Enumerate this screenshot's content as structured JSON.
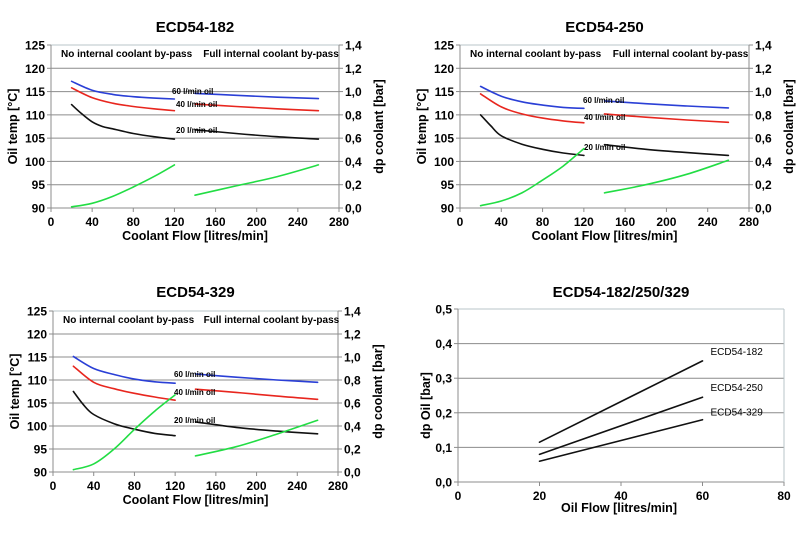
{
  "chart_data": [
    {
      "id": "c1",
      "type": "line",
      "title": "ECD54-182",
      "xlabel": "Coolant Flow  [litres/min]",
      "ylabel": "Oil temp [°C]",
      "y2label": "dp coolant [bar]",
      "xlim": [
        0,
        280
      ],
      "ylim": [
        90,
        125
      ],
      "y2lim": [
        0.0,
        1.4
      ],
      "xticks": [
        "0",
        "40",
        "80",
        "120",
        "160",
        "200",
        "240",
        "280"
      ],
      "yticks": [
        "90",
        "95",
        "100",
        "105",
        "110",
        "115",
        "120",
        "125"
      ],
      "y2ticks": [
        "0,0",
        "0,2",
        "0,4",
        "0,6",
        "0,8",
        "1,0",
        "1,2",
        "1,4"
      ],
      "grid": true,
      "annotations": [
        "No internal coolant by-pass",
        "Full internal coolant by-pass"
      ],
      "series": [
        {
          "name": "60 l/min oil",
          "axis": "left",
          "color": "#2a3fd6",
          "segments": [
            {
              "x": [
                20,
                40,
                60,
                80,
                100,
                120
              ],
              "y": [
                117.2,
                115.3,
                114.4,
                113.9,
                113.6,
                113.4
              ]
            },
            {
              "x": [
                140,
                180,
                220,
                260
              ],
              "y": [
                114.6,
                114.2,
                113.8,
                113.5
              ]
            }
          ]
        },
        {
          "name": "40 l/min oil",
          "axis": "left",
          "color": "#e8261e",
          "segments": [
            {
              "x": [
                20,
                40,
                60,
                80,
                100,
                120
              ],
              "y": [
                115.8,
                113.7,
                112.5,
                111.8,
                111.3,
                110.9
              ]
            },
            {
              "x": [
                140,
                180,
                220,
                260
              ],
              "y": [
                112.3,
                111.8,
                111.3,
                110.9
              ]
            }
          ]
        },
        {
          "name": "20 l/min oil",
          "axis": "left",
          "color": "#111111",
          "segments": [
            {
              "x": [
                20,
                30,
                40,
                50,
                60,
                80,
                100,
                120
              ],
              "y": [
                112.2,
                110.2,
                108.5,
                107.5,
                107.0,
                106.0,
                105.3,
                104.8
              ]
            },
            {
              "x": [
                140,
                180,
                220,
                260
              ],
              "y": [
                106.8,
                106.0,
                105.3,
                104.8
              ]
            }
          ]
        },
        {
          "name": "dp coolant",
          "axis": "right",
          "color": "#22dd44",
          "segments": [
            {
              "x": [
                20,
                40,
                60,
                80,
                100,
                120
              ],
              "y": [
                0.01,
                0.04,
                0.1,
                0.18,
                0.27,
                0.37
              ]
            },
            {
              "x": [
                140,
                180,
                220,
                260
              ],
              "y": [
                0.11,
                0.19,
                0.27,
                0.37
              ]
            }
          ]
        }
      ]
    },
    {
      "id": "c2",
      "type": "line",
      "title": "ECD54-250",
      "xlabel": "Coolant Flow  [litres/min]",
      "ylabel": "Oil temp [°C]",
      "y2label": "dp coolant [bar]",
      "xlim": [
        0,
        280
      ],
      "ylim": [
        90,
        125
      ],
      "y2lim": [
        0.0,
        1.4
      ],
      "xticks": [
        "0",
        "40",
        "80",
        "120",
        "160",
        "200",
        "240",
        "280"
      ],
      "yticks": [
        "90",
        "95",
        "100",
        "105",
        "110",
        "115",
        "120",
        "125"
      ],
      "y2ticks": [
        "0,0",
        "0,2",
        "0,4",
        "0,6",
        "0,8",
        "1,0",
        "1,2",
        "1,4"
      ],
      "grid": true,
      "annotations": [
        "No internal coolant by-pass",
        "Full internal coolant by-pass"
      ],
      "series": [
        {
          "name": "60 l/min oil",
          "axis": "left",
          "color": "#2a3fd6",
          "segments": [
            {
              "x": [
                20,
                40,
                60,
                80,
                100,
                120
              ],
              "y": [
                116.1,
                114.0,
                112.8,
                112.1,
                111.6,
                111.4
              ]
            },
            {
              "x": [
                140,
                180,
                220,
                260
              ],
              "y": [
                113.0,
                112.4,
                111.9,
                111.5
              ]
            }
          ]
        },
        {
          "name": "40 l/min oil",
          "axis": "left",
          "color": "#e8261e",
          "segments": [
            {
              "x": [
                20,
                40,
                60,
                80,
                100,
                120
              ],
              "y": [
                114.5,
                111.7,
                110.2,
                109.3,
                108.7,
                108.3
              ]
            },
            {
              "x": [
                140,
                180,
                220,
                260
              ],
              "y": [
                110.2,
                109.5,
                108.9,
                108.4
              ]
            }
          ]
        },
        {
          "name": "20 l/min oil",
          "axis": "left",
          "color": "#111111",
          "segments": [
            {
              "x": [
                20,
                30,
                40,
                60,
                80,
                100,
                120
              ],
              "y": [
                110.0,
                107.6,
                105.5,
                103.7,
                102.6,
                101.8,
                101.3
              ]
            },
            {
              "x": [
                140,
                180,
                220,
                260
              ],
              "y": [
                103.6,
                102.6,
                101.9,
                101.3
              ]
            }
          ]
        },
        {
          "name": "dp coolant",
          "axis": "right",
          "color": "#22dd44",
          "segments": [
            {
              "x": [
                20,
                40,
                60,
                80,
                100,
                120
              ],
              "y": [
                0.02,
                0.06,
                0.13,
                0.24,
                0.36,
                0.51
              ]
            },
            {
              "x": [
                140,
                180,
                220,
                260
              ],
              "y": [
                0.13,
                0.2,
                0.29,
                0.41
              ]
            }
          ]
        }
      ]
    },
    {
      "id": "c3",
      "type": "line",
      "title": "ECD54-329",
      "xlabel": "Coolant Flow  [litres/min]",
      "ylabel": "Oil temp [°C]",
      "y2label": "dp coolant [bar]",
      "xlim": [
        0,
        280
      ],
      "ylim": [
        90,
        125
      ],
      "y2lim": [
        0.0,
        1.4
      ],
      "xticks": [
        "0",
        "40",
        "80",
        "120",
        "160",
        "200",
        "240",
        "280"
      ],
      "yticks": [
        "90",
        "95",
        "100",
        "105",
        "110",
        "115",
        "120",
        "125"
      ],
      "y2ticks": [
        "0,0",
        "0,2",
        "0,4",
        "0,6",
        "0,8",
        "1,0",
        "1,2",
        "1,4"
      ],
      "grid": true,
      "annotations": [
        "No internal coolant by-pass",
        "Full internal coolant by-pass"
      ],
      "series": [
        {
          "name": "60 l/min oil",
          "axis": "left",
          "color": "#2a3fd6",
          "segments": [
            {
              "x": [
                20,
                40,
                60,
                80,
                100,
                120
              ],
              "y": [
                115.1,
                112.5,
                111.2,
                110.2,
                109.6,
                109.3
              ]
            },
            {
              "x": [
                140,
                180,
                220,
                260
              ],
              "y": [
                111.3,
                110.6,
                110.0,
                109.5
              ]
            }
          ]
        },
        {
          "name": "40 l/min oil",
          "axis": "left",
          "color": "#e8261e",
          "segments": [
            {
              "x": [
                20,
                40,
                60,
                80,
                100,
                120
              ],
              "y": [
                113.0,
                109.5,
                108.1,
                107.1,
                106.3,
                105.6
              ]
            },
            {
              "x": [
                140,
                180,
                220,
                260
              ],
              "y": [
                108.0,
                107.3,
                106.5,
                105.8
              ]
            }
          ]
        },
        {
          "name": "20 l/min oil",
          "axis": "left",
          "color": "#111111",
          "segments": [
            {
              "x": [
                20,
                30,
                40,
                60,
                80,
                100,
                120
              ],
              "y": [
                107.5,
                104.6,
                102.5,
                100.5,
                99.3,
                98.4,
                97.9
              ]
            },
            {
              "x": [
                140,
                180,
                220,
                260
              ],
              "y": [
                100.9,
                99.7,
                98.9,
                98.3
              ]
            }
          ]
        },
        {
          "name": "dp coolant",
          "axis": "right",
          "color": "#22dd44",
          "segments": [
            {
              "x": [
                20,
                40,
                60,
                80,
                100,
                120
              ],
              "y": [
                0.02,
                0.07,
                0.2,
                0.37,
                0.53,
                0.67
              ]
            },
            {
              "x": [
                140,
                180,
                220,
                260
              ],
              "y": [
                0.14,
                0.22,
                0.33,
                0.45
              ]
            }
          ]
        }
      ]
    },
    {
      "id": "c4",
      "type": "line",
      "title": "ECD54-182/250/329",
      "xlabel": "Oil Flow  [litres/min]",
      "ylabel": "dp Oil [bar]",
      "xlim": [
        0,
        80
      ],
      "ylim": [
        0.0,
        0.5
      ],
      "xticks": [
        "0",
        "20",
        "40",
        "60",
        "80"
      ],
      "yticks": [
        "0,0",
        "0,1",
        "0,2",
        "0,3",
        "0,4",
        "0,5"
      ],
      "grid": true,
      "series": [
        {
          "name": "ECD54-182",
          "color": "#111111",
          "x": [
            20,
            60
          ],
          "y": [
            0.115,
            0.35
          ]
        },
        {
          "name": "ECD54-250",
          "color": "#111111",
          "x": [
            20,
            60
          ],
          "y": [
            0.08,
            0.245
          ]
        },
        {
          "name": "ECD54-329",
          "color": "#111111",
          "x": [
            20,
            60
          ],
          "y": [
            0.06,
            0.18
          ]
        }
      ]
    }
  ]
}
